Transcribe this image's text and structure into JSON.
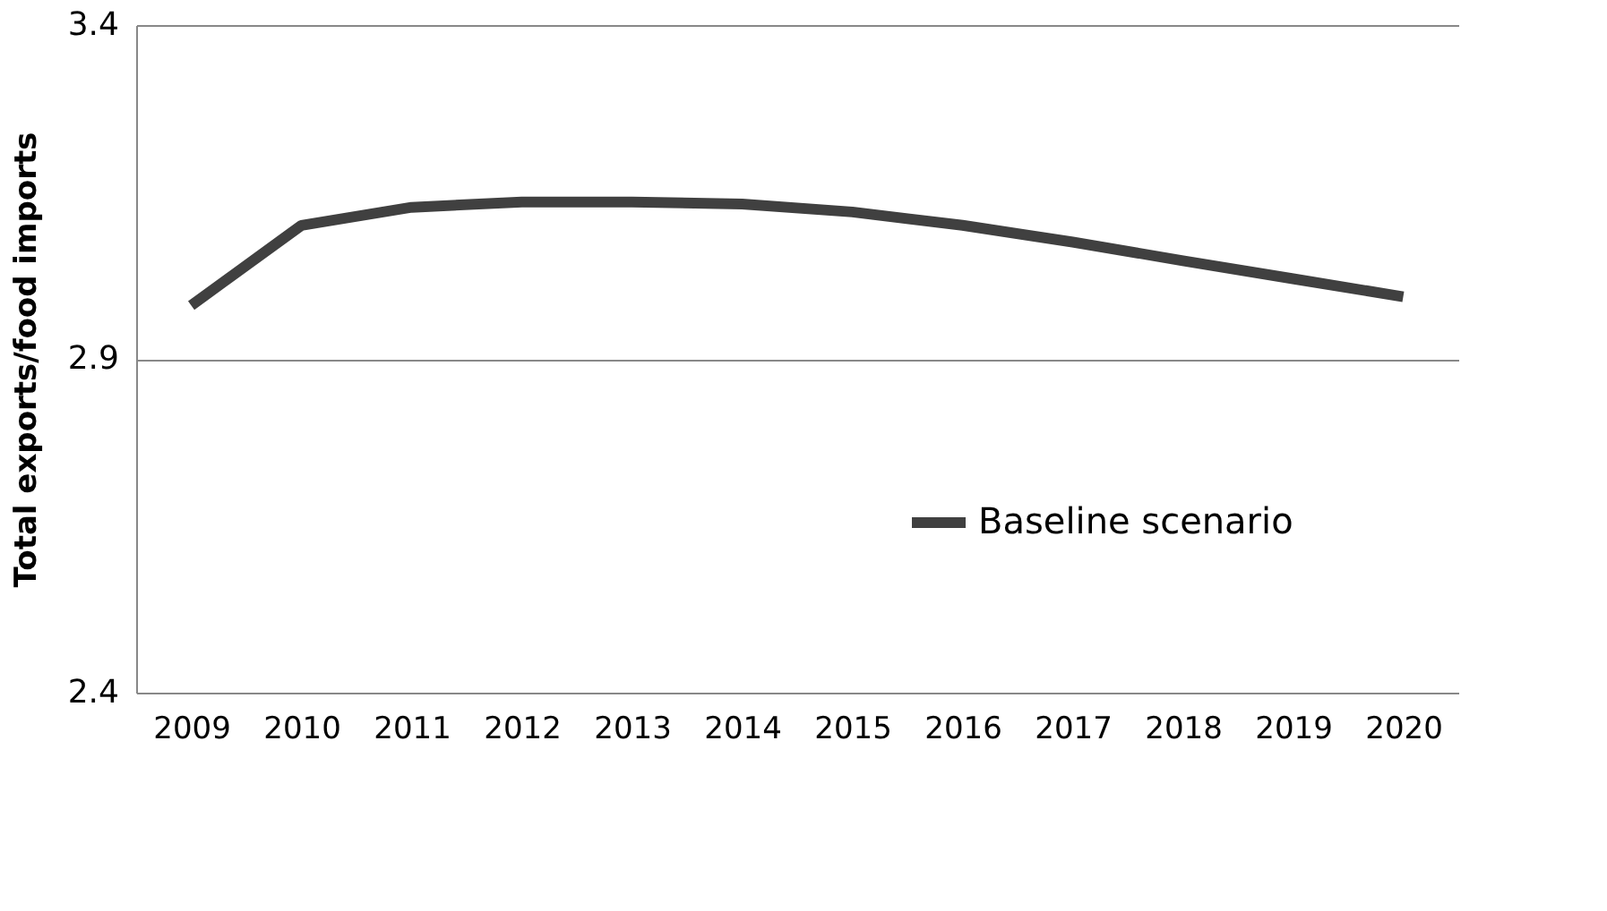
{
  "chart_data": {
    "type": "line",
    "ylabel": "Total exports/food imports",
    "categories": [
      "2009",
      "2010",
      "2011",
      "2012",
      "2013",
      "2014",
      "2015",
      "2016",
      "2017",
      "2018",
      "2019",
      "2020"
    ],
    "series": [
      {
        "name": "Baseline scenario",
        "color": "#404040",
        "values": [
          2.98,
          3.1,
          3.127,
          3.135,
          3.135,
          3.132,
          3.12,
          3.1,
          3.075,
          3.047,
          3.02,
          2.993
        ]
      }
    ],
    "ylim": [
      2.4,
      3.4
    ],
    "yticks": [
      2.4,
      2.9,
      3.4
    ],
    "grid": "y",
    "legend": "right",
    "marker": "none",
    "line_style": "solid"
  }
}
